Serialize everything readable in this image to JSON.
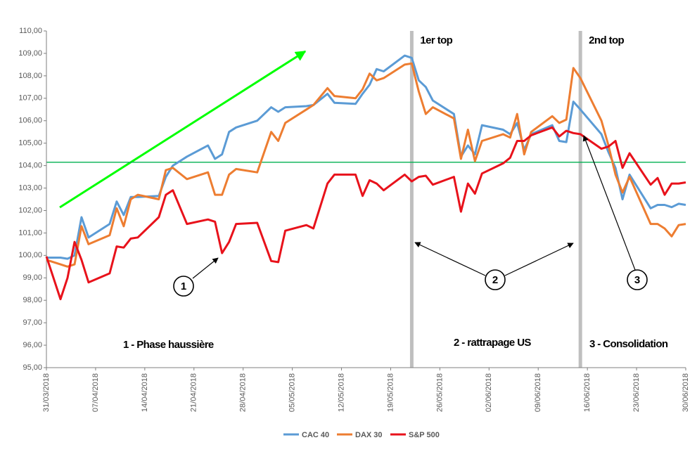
{
  "chart_data": {
    "type": "line",
    "x": [
      "31/03/2018",
      "02/04/2018",
      "03/04/2018",
      "04/04/2018",
      "05/04/2018",
      "06/04/2018",
      "09/04/2018",
      "10/04/2018",
      "11/04/2018",
      "12/04/2018",
      "13/04/2018",
      "16/04/2018",
      "17/04/2018",
      "18/04/2018",
      "20/04/2018",
      "23/04/2018",
      "24/04/2018",
      "25/04/2018",
      "26/04/2018",
      "27/04/2018",
      "30/04/2018",
      "02/05/2018",
      "03/05/2018",
      "04/05/2018",
      "07/05/2018",
      "08/05/2018",
      "10/05/2018",
      "11/05/2018",
      "14/05/2018",
      "15/05/2018",
      "16/05/2018",
      "17/05/2018",
      "18/05/2018",
      "21/05/2018",
      "22/05/2018",
      "23/05/2018",
      "24/05/2018",
      "25/05/2018",
      "28/05/2018",
      "29/05/2018",
      "30/05/2018",
      "31/05/2018",
      "01/06/2018",
      "04/06/2018",
      "05/06/2018",
      "06/06/2018",
      "07/06/2018",
      "08/06/2018",
      "11/06/2018",
      "12/06/2018",
      "13/06/2018",
      "14/06/2018",
      "15/06/2018",
      "18/06/2018",
      "19/06/2018",
      "20/06/2018",
      "21/06/2018",
      "22/06/2018",
      "25/06/2018",
      "26/06/2018",
      "27/06/2018",
      "28/06/2018",
      "29/06/2018",
      "30/06/2018"
    ],
    "series": [
      {
        "name": "CAC 40",
        "color": "#5b9bd5",
        "values": [
          99.9,
          99.9,
          99.85,
          100,
          101.7,
          100.8,
          101.4,
          102.4,
          101.8,
          102.6,
          102.6,
          102.65,
          103.5,
          104.0,
          104.4,
          104.9,
          104.3,
          104.5,
          105.5,
          105.7,
          106.0,
          106.6,
          106.4,
          106.6,
          106.65,
          106.7,
          107.2,
          106.8,
          106.75,
          107.2,
          107.6,
          108.3,
          108.2,
          108.9,
          108.8,
          107.8,
          107.5,
          106.9,
          106.3,
          104.4,
          104.9,
          104.5,
          105.8,
          105.6,
          105.4,
          105.9,
          104.7,
          105.4,
          105.8,
          105.1,
          105.05,
          106.85,
          106.5,
          105.4,
          104.6,
          103.9,
          102.5,
          103.6,
          102.1,
          102.25,
          102.25,
          102.15,
          102.3,
          102.25
        ]
      },
      {
        "name": "DAX 30",
        "color": "#ed7d31",
        "values": [
          99.8,
          99.6,
          99.5,
          99.6,
          101.3,
          100.5,
          100.9,
          102.1,
          101.3,
          102.5,
          102.7,
          102.5,
          103.8,
          103.9,
          103.4,
          103.7,
          102.7,
          102.7,
          103.6,
          103.85,
          103.7,
          105.5,
          105.1,
          105.9,
          106.5,
          106.7,
          107.45,
          107.1,
          107.0,
          107.4,
          108.1,
          107.8,
          107.9,
          108.5,
          108.55,
          107.3,
          106.3,
          106.6,
          106.1,
          104.3,
          105.6,
          104.2,
          105.1,
          105.4,
          105.25,
          106.3,
          104.5,
          105.5,
          106.2,
          105.9,
          106.05,
          108.35,
          107.9,
          106.0,
          104.9,
          103.6,
          102.8,
          103.5,
          101.4,
          101.4,
          101.2,
          100.85,
          101.35,
          101.4
        ]
      },
      {
        "name": "S&P 500",
        "color": "#e8121b",
        "values": [
          99.95,
          98.05,
          99.0,
          100.6,
          99.8,
          98.8,
          99.2,
          100.4,
          100.35,
          100.75,
          100.8,
          101.7,
          102.7,
          102.9,
          101.4,
          101.6,
          101.5,
          100.1,
          100.6,
          101.4,
          101.45,
          99.75,
          99.7,
          101.1,
          101.35,
          101.2,
          103.2,
          103.6,
          103.6,
          102.65,
          103.35,
          103.2,
          102.9,
          103.6,
          103.3,
          103.5,
          103.55,
          103.15,
          103.5,
          101.95,
          103.2,
          102.75,
          103.65,
          104.1,
          104.35,
          105.1,
          105.1,
          105.35,
          105.7,
          105.3,
          105.55,
          105.45,
          105.4,
          104.75,
          104.85,
          105.1,
          103.9,
          104.55,
          103.15,
          103.45,
          102.7,
          103.2,
          103.2,
          103.25
        ]
      }
    ],
    "xlim": [
      "31/03/2018",
      "30/06/2018"
    ],
    "xticks": [
      "31/03/2018",
      "07/04/2018",
      "14/04/2018",
      "21/04/2018",
      "28/04/2018",
      "05/05/2018",
      "12/05/2018",
      "19/05/2018",
      "26/05/2018",
      "02/06/2018",
      "09/06/2018",
      "16/06/2018",
      "23/06/2018",
      "30/06/2018"
    ],
    "ylim": [
      95,
      110
    ],
    "yticks": [
      {
        "value": 95,
        "label": "95,00"
      },
      {
        "value": 96,
        "label": "96,00"
      },
      {
        "value": 97,
        "label": "97,00"
      },
      {
        "value": 98,
        "label": "98,00"
      },
      {
        "value": 99,
        "label": "99,00"
      },
      {
        "value": 100,
        "label": "100,00"
      },
      {
        "value": 101,
        "label": "101,00"
      },
      {
        "value": 102,
        "label": "102,00"
      },
      {
        "value": 103,
        "label": "103,00"
      },
      {
        "value": 104,
        "label": "104,00"
      },
      {
        "value": 105,
        "label": "105,00"
      },
      {
        "value": 106,
        "label": "106,00"
      },
      {
        "value": 107,
        "label": "107,00"
      },
      {
        "value": 108,
        "label": "108,00"
      },
      {
        "value": 109,
        "label": "109,00"
      },
      {
        "value": 110,
        "label": "110,00"
      }
    ],
    "hline": {
      "value": 104.15,
      "color": "#00b050"
    },
    "vlines": [
      {
        "x": "22/05/2018",
        "label": "1er top"
      },
      {
        "x": "15/06/2018",
        "label": "2nd top"
      }
    ],
    "phases": [
      "1 - Phase haussière",
      "2 - rattrapage US",
      "3 - Consolidation"
    ],
    "callouts": [
      "1",
      "2",
      "3"
    ],
    "legend": "bottom"
  }
}
